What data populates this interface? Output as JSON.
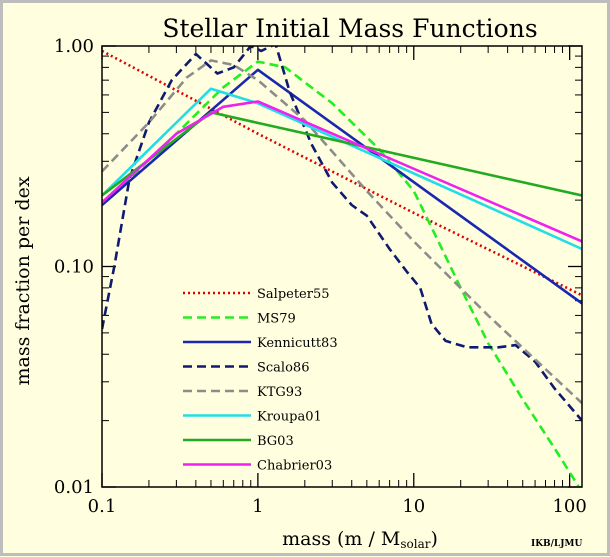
{
  "chart_data": {
    "type": "line",
    "title": "Stellar Initial Mass Functions",
    "xlabel": {
      "main": "mass (m / M",
      "sub": "solar",
      "close": ")"
    },
    "ylabel": "mass fraction per dex",
    "credit": "IKB/LJMU",
    "xscale": "log",
    "yscale": "log",
    "xlim": [
      0.1,
      120
    ],
    "ylim": [
      0.01,
      1.0
    ],
    "x_ticks": [
      {
        "value": 0.1,
        "label": "0.1"
      },
      {
        "value": 1,
        "label": "1"
      },
      {
        "value": 10,
        "label": "10"
      },
      {
        "value": 100,
        "label": "100"
      }
    ],
    "y_ticks": [
      {
        "value": 0.01,
        "label": "0.01"
      },
      {
        "value": 0.1,
        "label": "0.10"
      },
      {
        "value": 1.0,
        "label": "1.00"
      }
    ],
    "legend_placement": "lower-left",
    "series": [
      {
        "name": "Salpeter55",
        "color": "#e00000",
        "dash": "dotted",
        "points": [
          [
            0.1,
            0.95
          ],
          [
            1,
            0.4
          ],
          [
            10,
            0.175
          ],
          [
            120,
            0.074
          ]
        ]
      },
      {
        "name": "MS79",
        "color": "#22ee22",
        "dash": "dashed",
        "points": [
          [
            0.1,
            0.19
          ],
          [
            0.3,
            0.4
          ],
          [
            0.6,
            0.65
          ],
          [
            1,
            0.85
          ],
          [
            1.5,
            0.8
          ],
          [
            3,
            0.55
          ],
          [
            6,
            0.34
          ],
          [
            10,
            0.22
          ],
          [
            14,
            0.135
          ],
          [
            20,
            0.08
          ],
          [
            30,
            0.045
          ],
          [
            50,
            0.025
          ],
          [
            80,
            0.015
          ],
          [
            120,
            0.0095
          ]
        ]
      },
      {
        "name": "Kennicutt83",
        "color": "#1a28b0",
        "dash": "solid",
        "points": [
          [
            0.1,
            0.19
          ],
          [
            1,
            0.78
          ],
          [
            120,
            0.068
          ]
        ]
      },
      {
        "name": "Scalo86",
        "color": "#101a70",
        "dash": "dashed",
        "points": [
          [
            0.1,
            0.052
          ],
          [
            0.12,
            0.1
          ],
          [
            0.15,
            0.25
          ],
          [
            0.2,
            0.45
          ],
          [
            0.28,
            0.7
          ],
          [
            0.4,
            0.92
          ],
          [
            0.55,
            0.75
          ],
          [
            0.7,
            0.8
          ],
          [
            0.9,
            1.0
          ],
          [
            1.05,
            0.95
          ],
          [
            1.3,
            1.02
          ],
          [
            1.6,
            0.62
          ],
          [
            2.2,
            0.36
          ],
          [
            3,
            0.24
          ],
          [
            4,
            0.19
          ],
          [
            5,
            0.17
          ],
          [
            7,
            0.12
          ],
          [
            9,
            0.095
          ],
          [
            11,
            0.08
          ],
          [
            13,
            0.055
          ],
          [
            16,
            0.046
          ],
          [
            22,
            0.043
          ],
          [
            35,
            0.043
          ],
          [
            45,
            0.044
          ],
          [
            60,
            0.037
          ],
          [
            80,
            0.028
          ],
          [
            120,
            0.02
          ]
        ]
      },
      {
        "name": "KTG93",
        "color": "#8c8c8c",
        "dash": "dashed",
        "points": [
          [
            0.1,
            0.27
          ],
          [
            0.2,
            0.45
          ],
          [
            0.35,
            0.72
          ],
          [
            0.5,
            0.86
          ],
          [
            0.7,
            0.82
          ],
          [
            1,
            0.7
          ],
          [
            2,
            0.46
          ],
          [
            5,
            0.22
          ],
          [
            10,
            0.13
          ],
          [
            30,
            0.06
          ],
          [
            120,
            0.024
          ]
        ]
      },
      {
        "name": "Kroupa01",
        "color": "#22dde8",
        "dash": "solid",
        "points": [
          [
            0.1,
            0.21
          ],
          [
            0.5,
            0.64
          ],
          [
            1,
            0.55
          ],
          [
            120,
            0.12
          ]
        ]
      },
      {
        "name": "BG03",
        "color": "#22aa22",
        "dash": "solid",
        "points": [
          [
            0.1,
            0.21
          ],
          [
            0.5,
            0.5
          ],
          [
            120,
            0.21
          ]
        ]
      },
      {
        "name": "Chabrier03",
        "color": "#ee22ee",
        "dash": "solid",
        "points": [
          [
            0.1,
            0.195
          ],
          [
            0.3,
            0.4
          ],
          [
            0.6,
            0.53
          ],
          [
            1,
            0.56
          ],
          [
            120,
            0.13
          ]
        ]
      }
    ]
  }
}
